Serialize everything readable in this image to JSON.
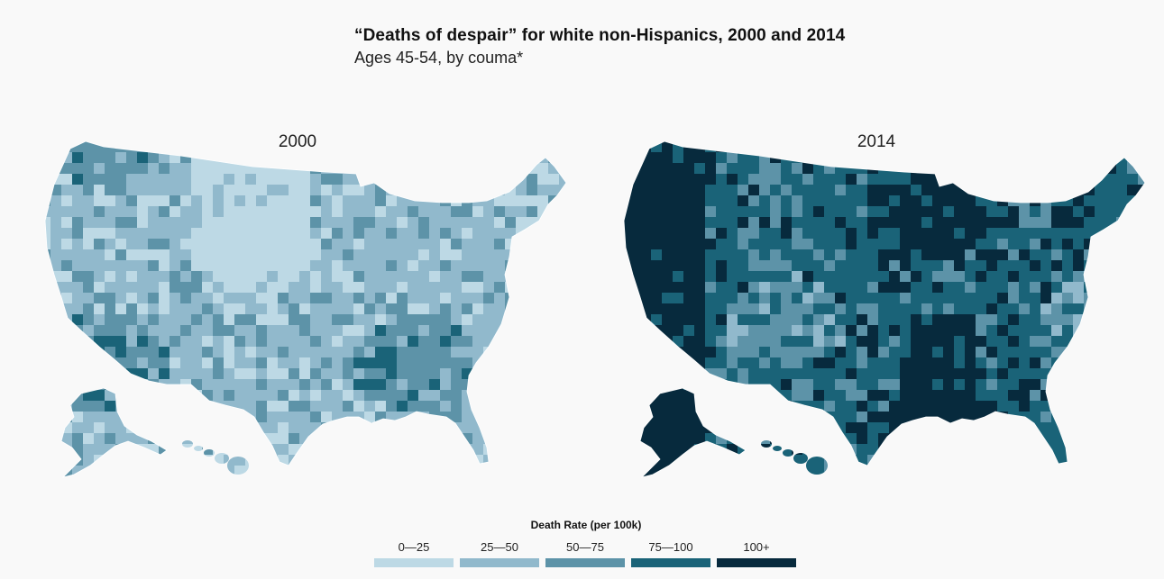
{
  "header": {
    "title": "“Deaths of despair” for white non-Hispanics, 2000 and 2014",
    "subtitle": "Ages 45-54, by couma*"
  },
  "maps": [
    {
      "label": "2000",
      "dominant_bin": 1
    },
    {
      "label": "2014",
      "dominant_bin": 3
    }
  ],
  "legend": {
    "title": "Death Rate (per 100k)",
    "bins": [
      {
        "label": "0—25",
        "color": "#bdd9e5"
      },
      {
        "label": "25—50",
        "color": "#91b9cc"
      },
      {
        "label": "50—75",
        "color": "#5d93a8"
      },
      {
        "label": "75—100",
        "color": "#1a6378"
      },
      {
        "label": "100+",
        "color": "#072a3d"
      }
    ]
  }
}
